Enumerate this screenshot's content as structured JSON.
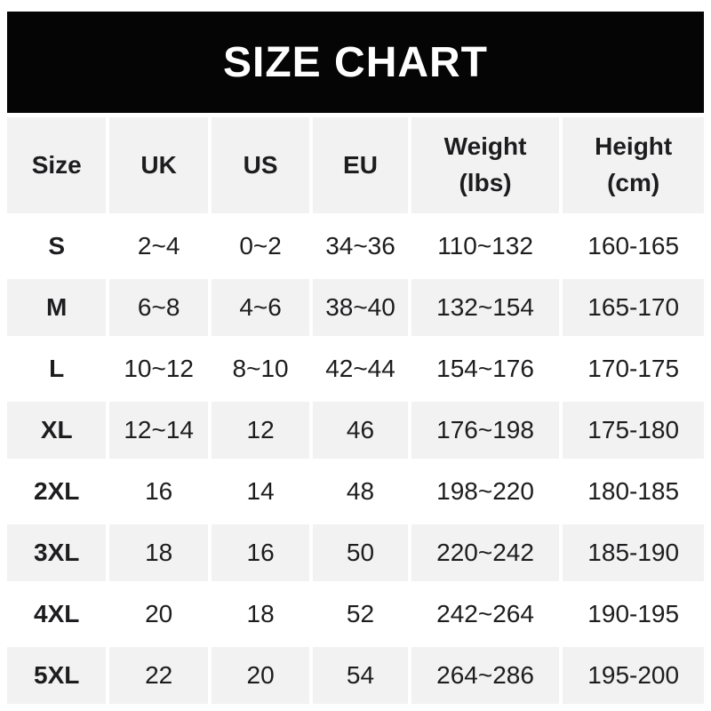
{
  "banner": {
    "title": "SIZE CHART"
  },
  "colors": {
    "page_bg": "#ffffff",
    "banner_bg": "#050505",
    "banner_text": "#ffffff",
    "row_alt_bg": "#f2f2f2",
    "text": "#1d1d1f"
  },
  "chart_data": {
    "type": "table",
    "title": "SIZE CHART",
    "columns": [
      "Size",
      "UK",
      "US",
      "EU",
      "Weight (lbs)",
      "Height (cm)"
    ],
    "header_lines": [
      [
        "Size"
      ],
      [
        "UK"
      ],
      [
        "US"
      ],
      [
        "EU"
      ],
      [
        "Weight",
        "(lbs)"
      ],
      [
        "Height",
        "(cm)"
      ]
    ],
    "rows": [
      [
        "S",
        "2~4",
        "0~2",
        "34~36",
        "110~132",
        "160-165"
      ],
      [
        "M",
        "6~8",
        "4~6",
        "38~40",
        "132~154",
        "165-170"
      ],
      [
        "L",
        "10~12",
        "8~10",
        "42~44",
        "154~176",
        "170-175"
      ],
      [
        "XL",
        "12~14",
        "12",
        "46",
        "176~198",
        "175-180"
      ],
      [
        "2XL",
        "16",
        "14",
        "48",
        "198~220",
        "180-185"
      ],
      [
        "3XL",
        "18",
        "16",
        "50",
        "220~242",
        "185-190"
      ],
      [
        "4XL",
        "20",
        "18",
        "52",
        "242~264",
        "190-195"
      ],
      [
        "5XL",
        "22",
        "20",
        "54",
        "264~286",
        "195-200"
      ]
    ],
    "layout": {
      "header_row_shaded": true,
      "alternating_shaded_data_rows": [
        "M",
        "XL",
        "3XL",
        "5XL"
      ]
    }
  }
}
